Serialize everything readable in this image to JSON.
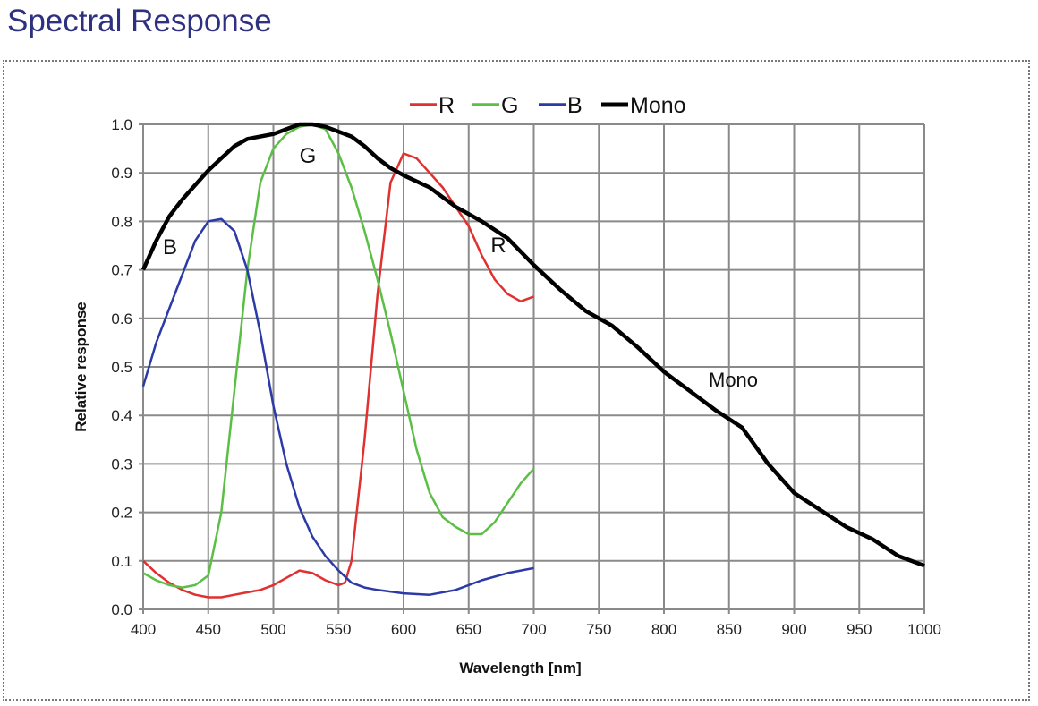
{
  "page_title": "Spectral Response",
  "chart_data": {
    "type": "line",
    "title": "",
    "xlabel": "Wavelength [nm]",
    "ylabel": "Relative response",
    "xlim": [
      400,
      1000
    ],
    "ylim": [
      0,
      1.0
    ],
    "xticks": [
      400,
      450,
      500,
      550,
      600,
      650,
      700,
      750,
      800,
      850,
      900,
      950,
      1000
    ],
    "yticks": [
      "0.0",
      "0.1",
      "0.2",
      "0.3",
      "0.4",
      "0.5",
      "0.6",
      "0.7",
      "0.8",
      "0.9",
      "1.0"
    ],
    "grid": true,
    "legend_position": "top",
    "series": [
      {
        "name": "R",
        "color": "#e03030",
        "label": "R",
        "x": [
          400,
          410,
          420,
          430,
          440,
          450,
          460,
          470,
          480,
          490,
          500,
          510,
          520,
          530,
          540,
          550,
          555,
          560,
          570,
          580,
          590,
          600,
          610,
          620,
          630,
          640,
          650,
          660,
          670,
          680,
          690,
          700
        ],
        "y": [
          0.1,
          0.075,
          0.055,
          0.04,
          0.03,
          0.025,
          0.025,
          0.03,
          0.035,
          0.04,
          0.05,
          0.065,
          0.08,
          0.075,
          0.06,
          0.05,
          0.055,
          0.1,
          0.35,
          0.65,
          0.88,
          0.94,
          0.93,
          0.9,
          0.87,
          0.83,
          0.79,
          0.73,
          0.68,
          0.65,
          0.635,
          0.645
        ]
      },
      {
        "name": "G",
        "color": "#5cbf45",
        "label": "G",
        "x": [
          400,
          410,
          420,
          430,
          440,
          450,
          460,
          470,
          480,
          490,
          500,
          510,
          520,
          530,
          540,
          550,
          560,
          570,
          580,
          590,
          600,
          610,
          620,
          630,
          640,
          650,
          660,
          670,
          680,
          690,
          700
        ],
        "y": [
          0.075,
          0.06,
          0.05,
          0.045,
          0.05,
          0.07,
          0.2,
          0.45,
          0.7,
          0.88,
          0.95,
          0.98,
          0.995,
          1.0,
          0.99,
          0.94,
          0.87,
          0.78,
          0.68,
          0.57,
          0.45,
          0.33,
          0.24,
          0.19,
          0.17,
          0.155,
          0.155,
          0.18,
          0.22,
          0.26,
          0.29
        ]
      },
      {
        "name": "B",
        "color": "#2c3aa8",
        "label": "B",
        "x": [
          400,
          410,
          420,
          430,
          440,
          450,
          460,
          470,
          480,
          490,
          500,
          510,
          520,
          530,
          540,
          550,
          560,
          570,
          580,
          600,
          620,
          640,
          660,
          680,
          700
        ],
        "y": [
          0.46,
          0.55,
          0.62,
          0.69,
          0.76,
          0.8,
          0.805,
          0.78,
          0.7,
          0.57,
          0.42,
          0.3,
          0.21,
          0.15,
          0.11,
          0.08,
          0.055,
          0.045,
          0.04,
          0.033,
          0.03,
          0.04,
          0.06,
          0.075,
          0.085
        ]
      },
      {
        "name": "Mono",
        "color": "#000000",
        "label": "Mono",
        "x": [
          400,
          410,
          420,
          430,
          440,
          450,
          460,
          470,
          480,
          490,
          500,
          510,
          520,
          530,
          540,
          550,
          560,
          570,
          580,
          590,
          600,
          620,
          640,
          660,
          680,
          700,
          720,
          740,
          760,
          780,
          800,
          820,
          840,
          860,
          880,
          900,
          920,
          940,
          960,
          980,
          1000
        ],
        "y": [
          0.7,
          0.76,
          0.81,
          0.845,
          0.875,
          0.905,
          0.93,
          0.955,
          0.97,
          0.975,
          0.98,
          0.99,
          1.0,
          1.0,
          0.995,
          0.985,
          0.975,
          0.955,
          0.93,
          0.91,
          0.895,
          0.87,
          0.83,
          0.8,
          0.765,
          0.71,
          0.66,
          0.615,
          0.585,
          0.54,
          0.49,
          0.45,
          0.41,
          0.375,
          0.3,
          0.24,
          0.205,
          0.17,
          0.145,
          0.11,
          0.09
        ]
      }
    ]
  }
}
